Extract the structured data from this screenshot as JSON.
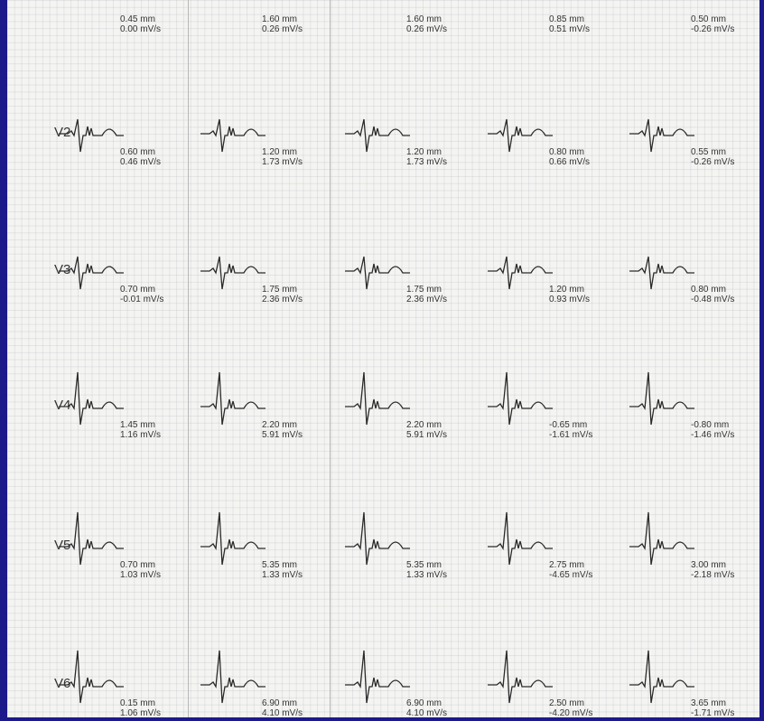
{
  "rows": [
    {
      "cells": [
        {
          "amplitude": "0.45 mm",
          "slope": "0.00 mV/s"
        },
        {
          "amplitude": "1.60 mm",
          "slope": "0.26 mV/s"
        },
        {
          "amplitude": "1.60 mm",
          "slope": "0.26 mV/s"
        },
        {
          "amplitude": "0.85 mm",
          "slope": "0.51 mV/s"
        },
        {
          "amplitude": "0.50 mm",
          "slope": "-0.26 mV/s"
        }
      ]
    },
    {
      "lead": "V2",
      "cells": [
        {
          "amplitude": "0.60 mm",
          "slope": "0.46 mV/s"
        },
        {
          "amplitude": "1.20 mm",
          "slope": "1.73 mV/s"
        },
        {
          "amplitude": "1.20 mm",
          "slope": "1.73 mV/s"
        },
        {
          "amplitude": "0.80 mm",
          "slope": "0.66 mV/s"
        },
        {
          "amplitude": "0.55 mm",
          "slope": "-0.26 mV/s"
        }
      ]
    },
    {
      "lead": "V3",
      "cells": [
        {
          "amplitude": "0.70 mm",
          "slope": "-0.01 mV/s"
        },
        {
          "amplitude": "1.75 mm",
          "slope": "2.36 mV/s"
        },
        {
          "amplitude": "1.75 mm",
          "slope": "2.36 mV/s"
        },
        {
          "amplitude": "1.20 mm",
          "slope": "0.93 mV/s"
        },
        {
          "amplitude": "0.80 mm",
          "slope": "-0.48 mV/s"
        }
      ]
    },
    {
      "lead": "V4",
      "cells": [
        {
          "amplitude": "1.45 mm",
          "slope": "1.16 mV/s"
        },
        {
          "amplitude": "2.20 mm",
          "slope": "5.91 mV/s"
        },
        {
          "amplitude": "2.20 mm",
          "slope": "5.91 mV/s"
        },
        {
          "amplitude": "-0.65 mm",
          "slope": "-1.61 mV/s"
        },
        {
          "amplitude": "-0.80 mm",
          "slope": "-1.46 mV/s"
        }
      ]
    },
    {
      "lead": "V5",
      "cells": [
        {
          "amplitude": "0.70 mm",
          "slope": "1.03 mV/s"
        },
        {
          "amplitude": "5.35 mm",
          "slope": "1.33 mV/s"
        },
        {
          "amplitude": "5.35 mm",
          "slope": "1.33 mV/s"
        },
        {
          "amplitude": "2.75 mm",
          "slope": "-4.65 mV/s"
        },
        {
          "amplitude": "3.00 mm",
          "slope": "-2.18 mV/s"
        }
      ]
    },
    {
      "lead": "V6",
      "cells": [
        {
          "amplitude": "0.15 mm",
          "slope": "1.06 mV/s"
        },
        {
          "amplitude": "6.90 mm",
          "slope": "4.10 mV/s"
        },
        {
          "amplitude": "6.90 mm",
          "slope": "4.10 mV/s"
        },
        {
          "amplitude": "2.50 mm",
          "slope": "-4.20 mV/s"
        },
        {
          "amplitude": "3.65 mm",
          "slope": "-1.71 mV/s"
        }
      ]
    }
  ]
}
